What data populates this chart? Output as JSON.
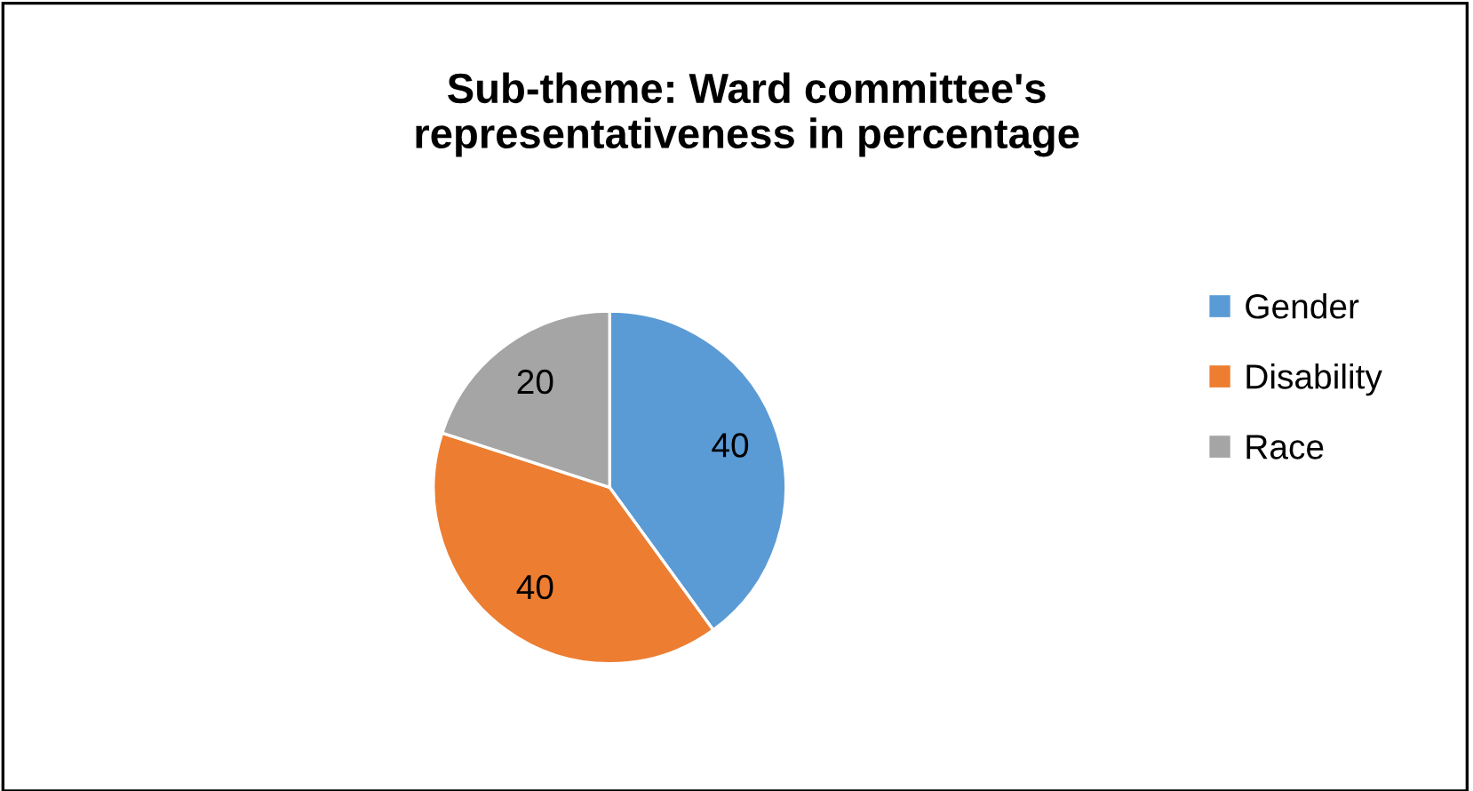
{
  "chart_data": {
    "type": "pie",
    "title": "Sub-theme: Ward committee's\nrepresentativeness in percentage",
    "categories": [
      "Gender",
      "Disability",
      "Race"
    ],
    "values": [
      40,
      40,
      20
    ],
    "colors": [
      "#5b9bd5",
      "#ed7d31",
      "#a5a5a5"
    ],
    "data_labels": true,
    "legend": "right"
  }
}
